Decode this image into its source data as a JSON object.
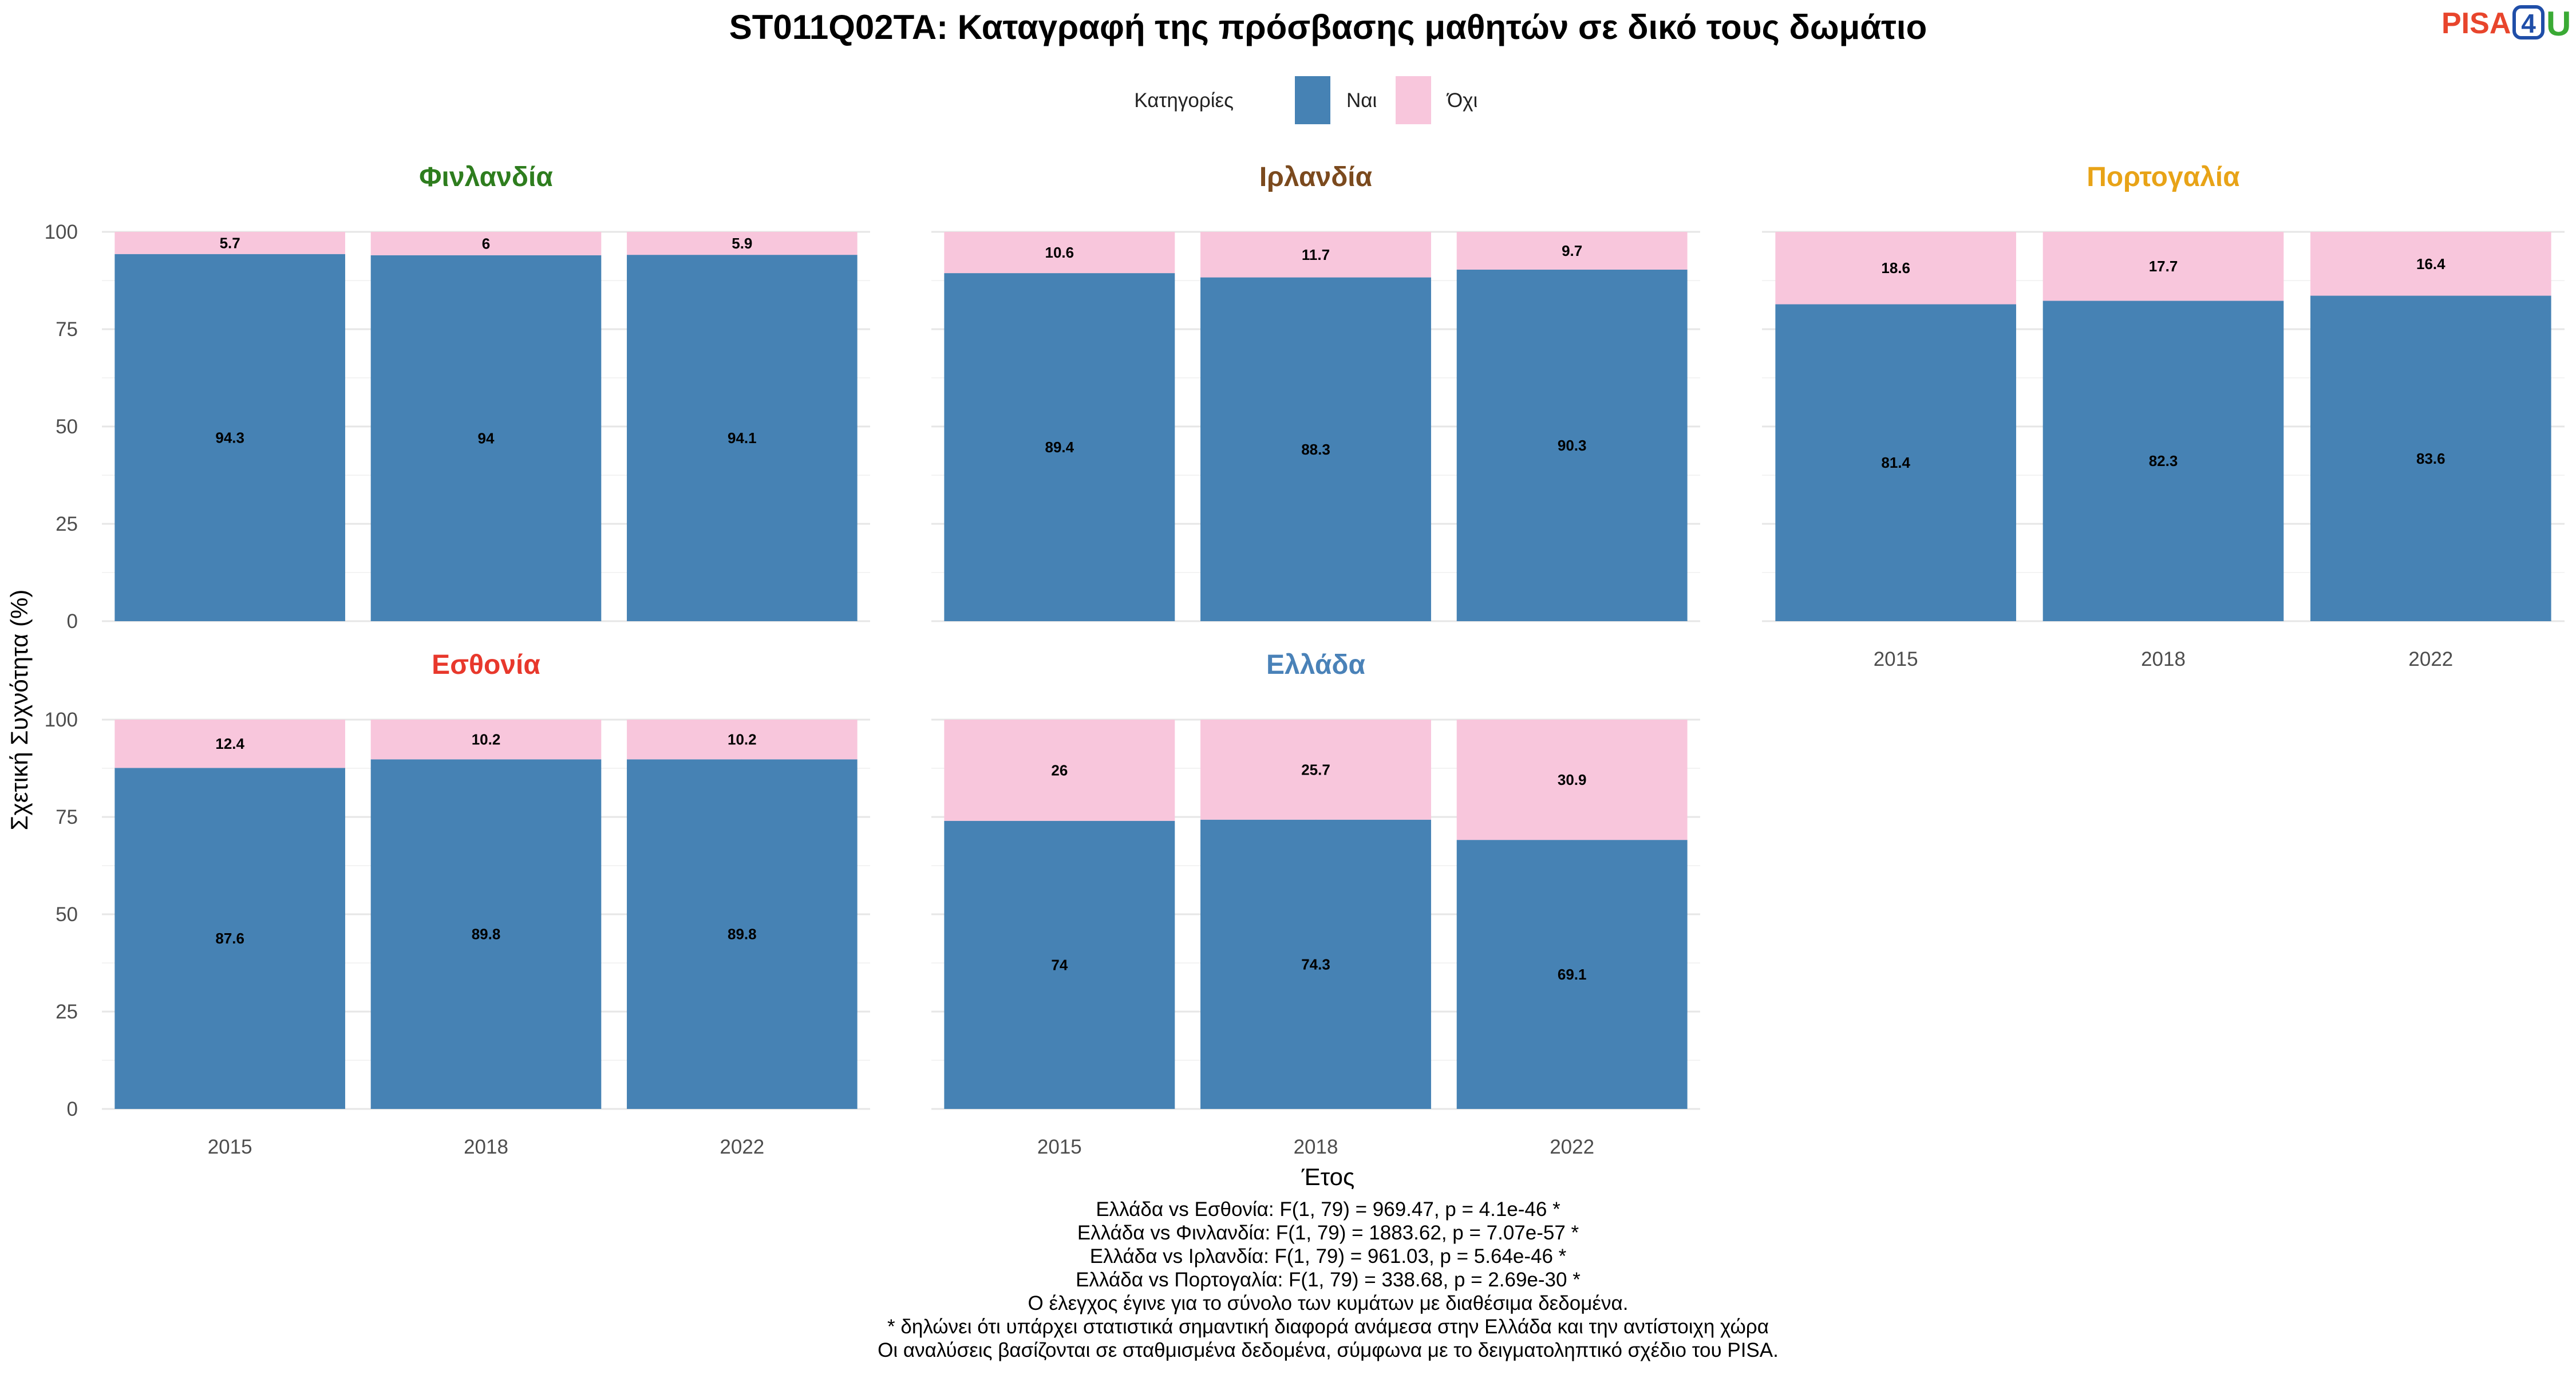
{
  "title": "ST011Q02TA: Καταγραφή της πρόσβασης μαθητών σε δικό τους δωμάτιο",
  "logo": {
    "part1": "PISA",
    "part2": "4",
    "part3": "U"
  },
  "legend": {
    "title": "Κατηγορίες",
    "items": [
      {
        "label": "Ναι",
        "color": "#4682b4"
      },
      {
        "label": "Όχι",
        "color": "#f8c6dc"
      }
    ]
  },
  "axes": {
    "xlabel": "Έτος",
    "ylabel": "Σχετική Συχνότητα (%)"
  },
  "footnotes": [
    "Ελλάδα vs Εσθονία: F(1, 79) = 969.47, p = 4.1e-46 *",
    "Ελλάδα vs Φινλανδία: F(1, 79) = 1883.62, p = 7.07e-57 *",
    "Ελλάδα vs Ιρλανδία: F(1, 79) = 961.03, p = 5.64e-46 *",
    "Ελλάδα vs Πορτογαλία: F(1, 79) = 338.68, p = 2.69e-30 *",
    "Ο έλεγχος έγινε για το σύνολο των κυμάτων με διαθέσιμα δεδομένα.",
    "* δηλώνει ότι υπάρχει στατιστικά σημαντική διαφορά ανάμεσα στην Ελλάδα και την αντίστοιχη χώρα",
    "Οι αναλύσεις βασίζονται σε σταθμισμένα δεδομένα, σύμφωνα με το δειγματοληπτικό σχέδιο του PISA."
  ],
  "chart_data": {
    "type": "bar",
    "stacked": true,
    "title": "ST011Q02TA: Καταγραφή της πρόσβασης μαθητών σε δικό τους δωμάτιο",
    "xlabel": "Έτος",
    "ylabel": "Σχετική Συχνότητα (%)",
    "ylim": [
      0,
      100
    ],
    "yticks": [
      0,
      25,
      50,
      75,
      100
    ],
    "categories": [
      "2015",
      "2018",
      "2022"
    ],
    "grid": true,
    "legend_position": "top",
    "panels": [
      {
        "name": "Φινλανδία",
        "color": "#2e7d1e",
        "series": [
          {
            "name": "Ναι",
            "values": [
              94.3,
              94,
              94.1
            ]
          },
          {
            "name": "Όχι",
            "values": [
              5.7,
              6,
              5.9
            ]
          }
        ]
      },
      {
        "name": "Ιρλανδία",
        "color": "#7b4a1e",
        "series": [
          {
            "name": "Ναι",
            "values": [
              89.4,
              88.3,
              90.3
            ]
          },
          {
            "name": "Όχι",
            "values": [
              10.6,
              11.7,
              9.7
            ]
          }
        ]
      },
      {
        "name": "Πορτογαλία",
        "color": "#e8a317",
        "series": [
          {
            "name": "Ναι",
            "values": [
              81.4,
              82.3,
              83.6
            ]
          },
          {
            "name": "Όχι",
            "values": [
              18.6,
              17.7,
              16.4
            ]
          }
        ]
      },
      {
        "name": "Εσθονία",
        "color": "#e8382c",
        "series": [
          {
            "name": "Ναι",
            "values": [
              87.6,
              89.8,
              89.8
            ]
          },
          {
            "name": "Όχι",
            "values": [
              12.4,
              10.2,
              10.2
            ]
          }
        ]
      },
      {
        "name": "Ελλάδα",
        "color": "#4a82b8",
        "series": [
          {
            "name": "Ναι",
            "values": [
              74,
              74.3,
              69.1
            ]
          },
          {
            "name": "Όχι",
            "values": [
              26,
              25.7,
              30.9
            ]
          }
        ]
      }
    ]
  }
}
